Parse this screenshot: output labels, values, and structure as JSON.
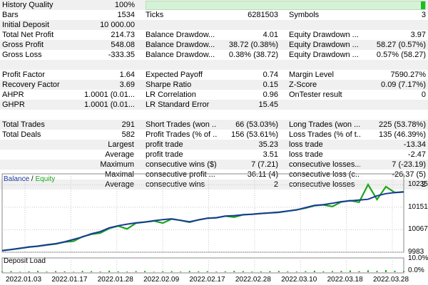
{
  "report": {
    "history_quality": {
      "label": "History Quality",
      "value": "100%",
      "fill_fraction": 1.0
    },
    "rows": [
      {
        "l1": "Bars",
        "v1": "1534",
        "l2": "Ticks",
        "v2": "6281503",
        "l3": "Symbols",
        "v3": "3"
      },
      {
        "l1": "Initial Deposit",
        "v1": "10 000.00",
        "l2": "",
        "v2": "",
        "l3": "",
        "v3": ""
      },
      {
        "l1": "Total Net Profit",
        "v1": "214.73",
        "l2": "Balance Drawdow...",
        "v2": "4.01",
        "l3": "Equity Drawdown ...",
        "v3": "3.97"
      },
      {
        "l1": "Gross Profit",
        "v1": "548.08",
        "l2": "Balance Drawdow...",
        "v2": "38.72 (0.38%)",
        "l3": "Equity Drawdown ...",
        "v3": "58.27 (0.57%)"
      },
      {
        "l1": "Gross Loss",
        "v1": "-333.35",
        "l2": "Balance Drawdow...",
        "v2": "0.38% (38.72)",
        "l3": "Equity Drawdown ...",
        "v3": "0.57% (58.27)"
      },
      {
        "l1": "",
        "v1": "",
        "l2": "",
        "v2": "",
        "l3": "",
        "v3": ""
      },
      {
        "l1": "Profit Factor",
        "v1": "1.64",
        "l2": "Expected Payoff",
        "v2": "0.74",
        "l3": "Margin Level",
        "v3": "7590.27%"
      },
      {
        "l1": "Recovery Factor",
        "v1": "3.69",
        "l2": "Sharpe Ratio",
        "v2": "0.15",
        "l3": "Z-Score",
        "v3": "0.09 (7.17%)"
      },
      {
        "l1": "AHPR",
        "v1": "1.0001 (0.01...",
        "l2": "LR Correlation",
        "v2": "0.96",
        "l3": "OnTester result",
        "v3": "0"
      },
      {
        "l1": "GHPR",
        "v1": "1.0001 (0.01...",
        "l2": "LR Standard Error",
        "v2": "15.45",
        "l3": "",
        "v3": ""
      },
      {
        "l1": "",
        "v1": "",
        "l2": "",
        "v2": "",
        "l3": "",
        "v3": ""
      },
      {
        "l1": "Total Trades",
        "v1": "291",
        "l2": "Short Trades (won ...",
        "v2": "66 (53.03%)",
        "l3": "Long Trades (won ...",
        "v3": "225 (53.78%)"
      },
      {
        "l1": "Total Deals",
        "v1": "582",
        "l2": "Profit Trades (% of ...",
        "v2": "156 (53.61%)",
        "l3": "Loss Trades (% of t...",
        "v3": "135 (46.39%)"
      }
    ],
    "stats_rows": [
      {
        "l1": "Largest",
        "l2": "profit trade",
        "v2": "35.23",
        "l3": "loss trade",
        "v3": "-13.34"
      },
      {
        "l1": "Average",
        "l2": "profit trade",
        "v2": "3.51",
        "l3": "loss trade",
        "v3": "-2.47"
      },
      {
        "l1": "Maximum",
        "l2": "consecutive wins ($)",
        "v2": "7 (7.21)",
        "l3": "consecutive losses...",
        "v3": "7 (-23.19)"
      },
      {
        "l1": "Maximal",
        "l2": "consecutive profit ...",
        "v2": "36.11 (4)",
        "l3": "consecutive loss (c...",
        "v3": "-26.37 (5)"
      },
      {
        "l1": "Average",
        "l2": "consecutive wins",
        "v2": "2",
        "l3": "consecutive losses",
        "v3": "2"
      }
    ]
  },
  "chart_data": {
    "type": "line",
    "legend": {
      "balance": "Balance",
      "separator": " / ",
      "equity": "Equity"
    },
    "colors": {
      "balance": "#1a3a9a",
      "equity": "#1aa51a",
      "grid": "#c8c8c8",
      "axis": "#888888"
    },
    "ylim": [
      9983,
      10260
    ],
    "y_ticks": [
      "10235",
      "10151",
      "10067",
      "9983"
    ],
    "y_tick_values": [
      10235,
      10151,
      10067,
      9983
    ],
    "x_ticks": [
      "2022.01.03",
      "2022.01.17",
      "2022.01.28",
      "2022.02.09",
      "2022.02.17",
      "2022.02.28",
      "2022.03.10",
      "2022.03.18",
      "2022.03.28"
    ],
    "series": [
      {
        "name": "Balance",
        "values": [
          9989,
          9993,
          9998,
          10002,
          10006,
          10011,
          10015,
          10022,
          10031,
          10040,
          10052,
          10060,
          10074,
          10082,
          10088,
          10093,
          10096,
          10101,
          10105,
          10108,
          10102,
          10097,
          10104,
          10110,
          10112,
          10118,
          10120,
          10123,
          10125,
          10128,
          10130,
          10133,
          10137,
          10141,
          10150,
          10158,
          10161,
          10166,
          10172,
          10175,
          10178,
          10181,
          10194,
          10202,
          10206,
          10208
        ]
      },
      {
        "name": "Equity",
        "values": [
          9989,
          9993,
          9997,
          10003,
          10005,
          10010,
          10014,
          10021,
          10024,
          10041,
          10050,
          10055,
          10072,
          10081,
          10070,
          10092,
          10096,
          10100,
          10092,
          10107,
          10102,
          10095,
          10104,
          10110,
          10112,
          10118,
          10114,
          10123,
          10125,
          10128,
          10130,
          10132,
          10137,
          10142,
          10148,
          10157,
          10160,
          10154,
          10171,
          10176,
          10170,
          10236,
          10180,
          10228,
          10206,
          10209
        ]
      }
    ],
    "deposit_load": {
      "title": "Deposit Load",
      "y_ticks": [
        "10.0%",
        "0.0%"
      ],
      "values": [
        0.3,
        0.5,
        0.2,
        0.4,
        0.6,
        0.3,
        0.5,
        0.4,
        0.2,
        0.6,
        0.5,
        0.3,
        0.7,
        0.4,
        0.3,
        0.5,
        0.6,
        0.2,
        0.4,
        0.5,
        0.3,
        0.6,
        0.4,
        0.5,
        0.3,
        0.4,
        0.6,
        0.5,
        0.3,
        0.4,
        0.5,
        0.6,
        0.4,
        0.3,
        0.5,
        0.7,
        0.4,
        0.5,
        0.6,
        0.8,
        0.5,
        0.9,
        0.6,
        1.0,
        0.7,
        0.5
      ]
    }
  }
}
